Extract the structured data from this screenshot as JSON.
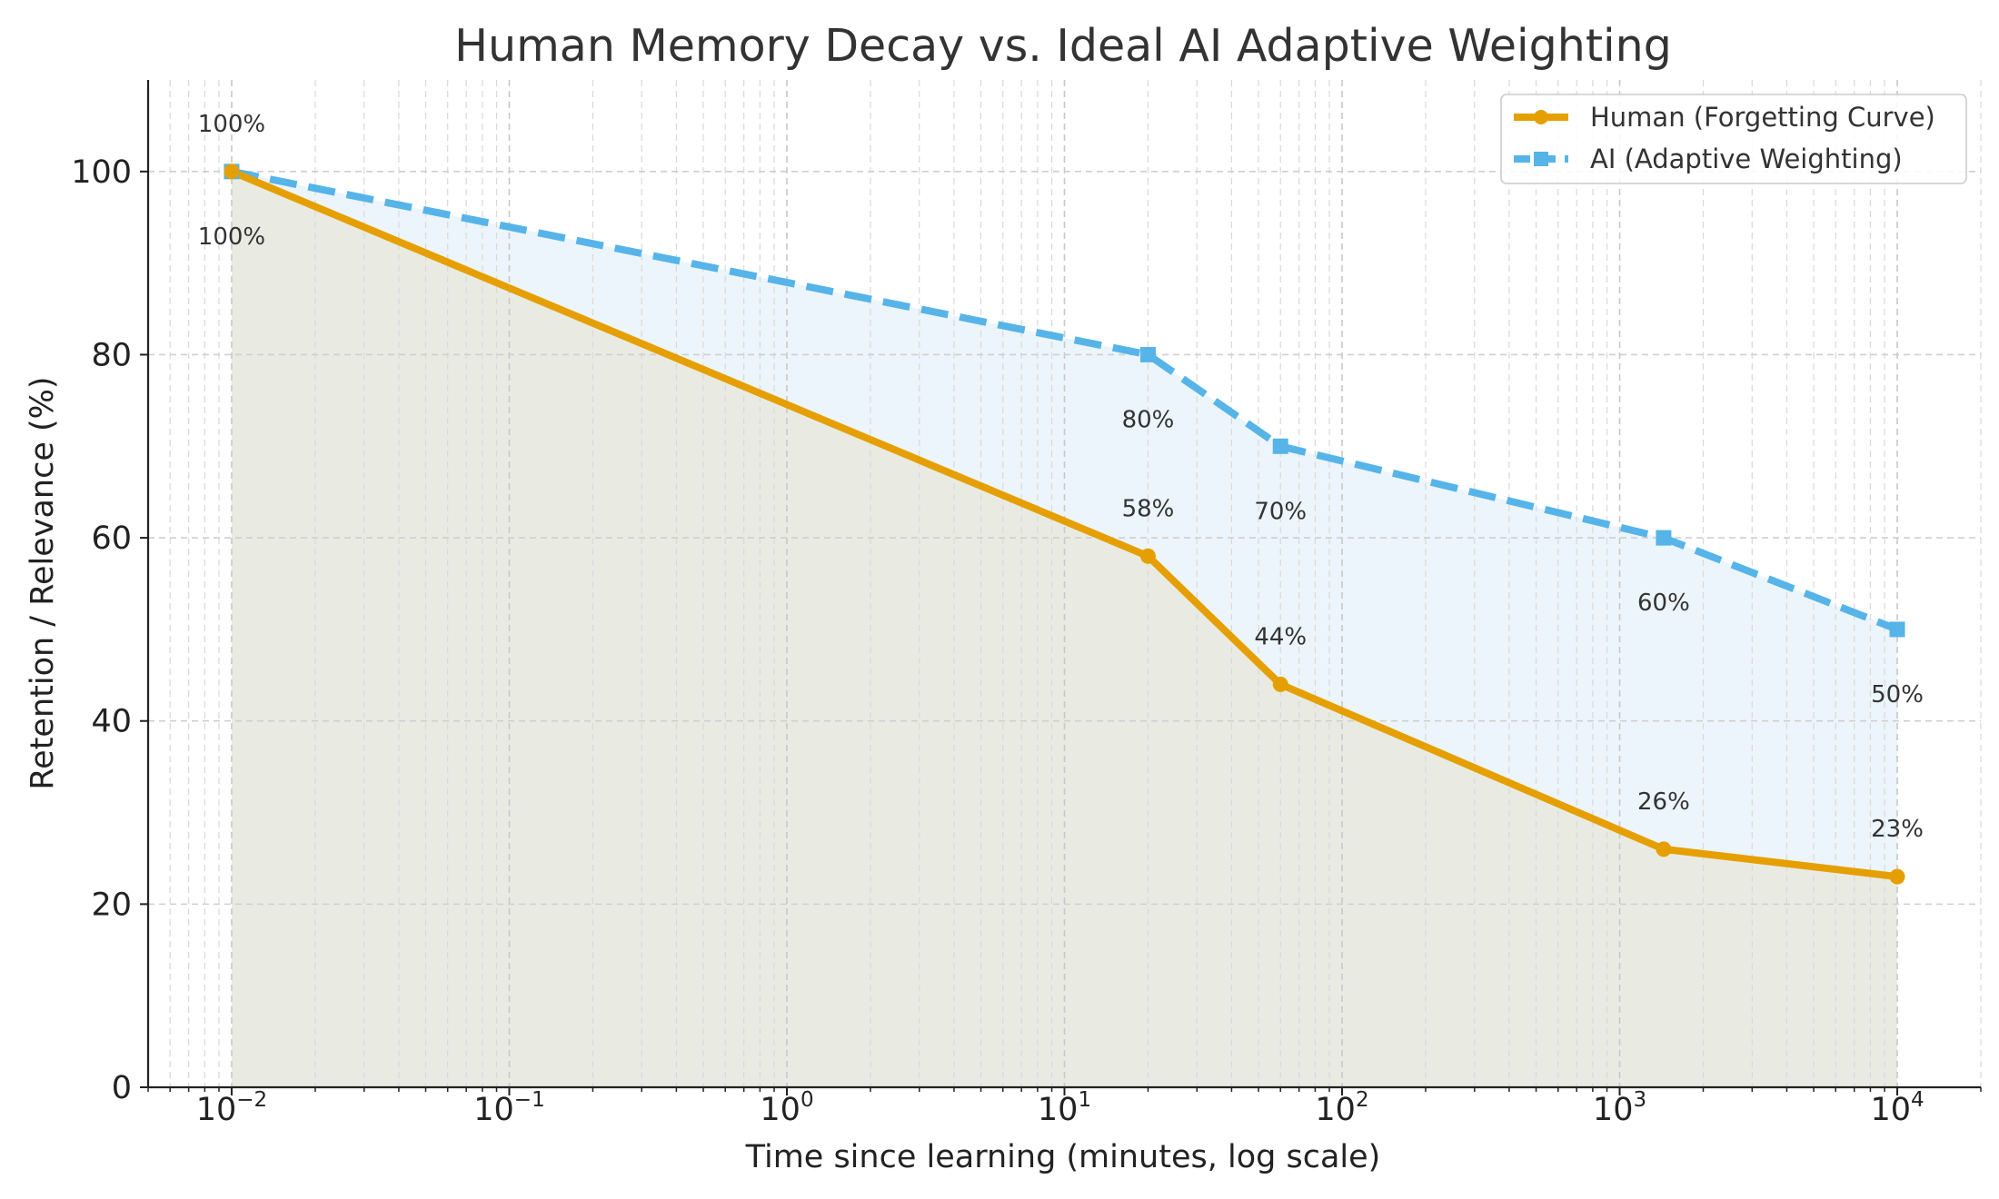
{
  "chart_data": {
    "type": "line",
    "title": "Human Memory Decay vs. Ideal AI Adaptive Weighting",
    "xlabel": "Time since learning (minutes, log scale)",
    "ylabel": "Retention / Relevance (%)",
    "xscale": "log",
    "xlim": [
      0.005,
      20000
    ],
    "ylim": [
      0,
      110
    ],
    "x_ticks": [
      {
        "value": 0.01,
        "base": "10",
        "exp": "−2"
      },
      {
        "value": 0.1,
        "base": "10",
        "exp": "−1"
      },
      {
        "value": 1,
        "base": "10",
        "exp": "0"
      },
      {
        "value": 10,
        "base": "10",
        "exp": "1"
      },
      {
        "value": 100,
        "base": "10",
        "exp": "2"
      },
      {
        "value": 1000,
        "base": "10",
        "exp": "3"
      },
      {
        "value": 10000,
        "base": "10",
        "exp": "4"
      }
    ],
    "y_ticks": [
      0,
      20,
      40,
      60,
      80,
      100
    ],
    "grid": true,
    "legend_position": "top-right",
    "series": [
      {
        "name": "Human (Forgetting Curve)",
        "color": "#E69F00",
        "fill": "#E9EBE2",
        "line_style": "solid",
        "marker": "circle",
        "x": [
          0.01,
          20,
          60,
          1440,
          10000
        ],
        "y": [
          100,
          58,
          44,
          26,
          23
        ],
        "labels": [
          "100%",
          "58%",
          "44%",
          "26%",
          "23%"
        ]
      },
      {
        "name": "AI (Adaptive Weighting)",
        "color": "#56B4E9",
        "fill": "#EBF5FB",
        "line_style": "dashed",
        "marker": "square",
        "x": [
          0.01,
          20,
          60,
          1440,
          10000
        ],
        "y": [
          100,
          80,
          70,
          60,
          50
        ],
        "labels": [
          "100%",
          "80%",
          "70%",
          "60%",
          "50%"
        ]
      }
    ]
  }
}
